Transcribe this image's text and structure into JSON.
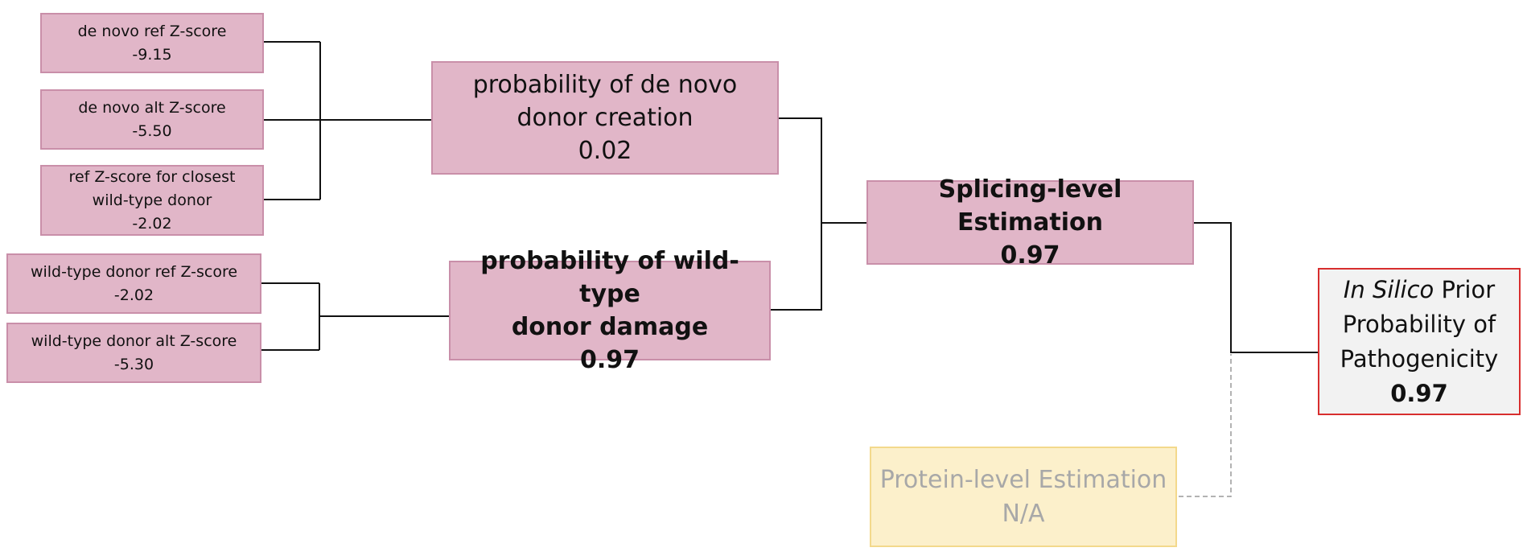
{
  "inputs": {
    "denovo_ref": {
      "label": "de novo ref Z-score",
      "value": "-9.15"
    },
    "denovo_alt": {
      "label": "de novo alt Z-score",
      "value": "-5.50"
    },
    "closest_wt": {
      "label_line1": "ref Z-score for closest",
      "label_line2": "wild-type donor",
      "value": "-2.02"
    },
    "wt_ref": {
      "label": "wild-type donor ref Z-score",
      "value": "-2.02"
    },
    "wt_alt": {
      "label": "wild-type donor alt Z-score",
      "value": "-5.30"
    }
  },
  "denovo_creation": {
    "line1": "probability of de novo",
    "line2": "donor creation",
    "value": "0.02"
  },
  "wt_damage": {
    "line1": "probability of wild-type",
    "line2": "donor damage",
    "value": "0.97"
  },
  "splicing": {
    "label": "Splicing-level Estimation",
    "value": "0.97"
  },
  "protein": {
    "label": "Protein-level Estimation",
    "value": "N/A"
  },
  "final": {
    "italic_part": "In Silico",
    "rest_part": " Prior",
    "line2": "Probability of",
    "line3": "Pathogenicity",
    "value": "0.97"
  },
  "colors": {
    "input_fill": "#e1b6c8",
    "input_border": "#c98fa9",
    "final_border": "#d82e2e",
    "protein_fill": "#fcf0cb",
    "protein_text": "#a8a8a8"
  }
}
